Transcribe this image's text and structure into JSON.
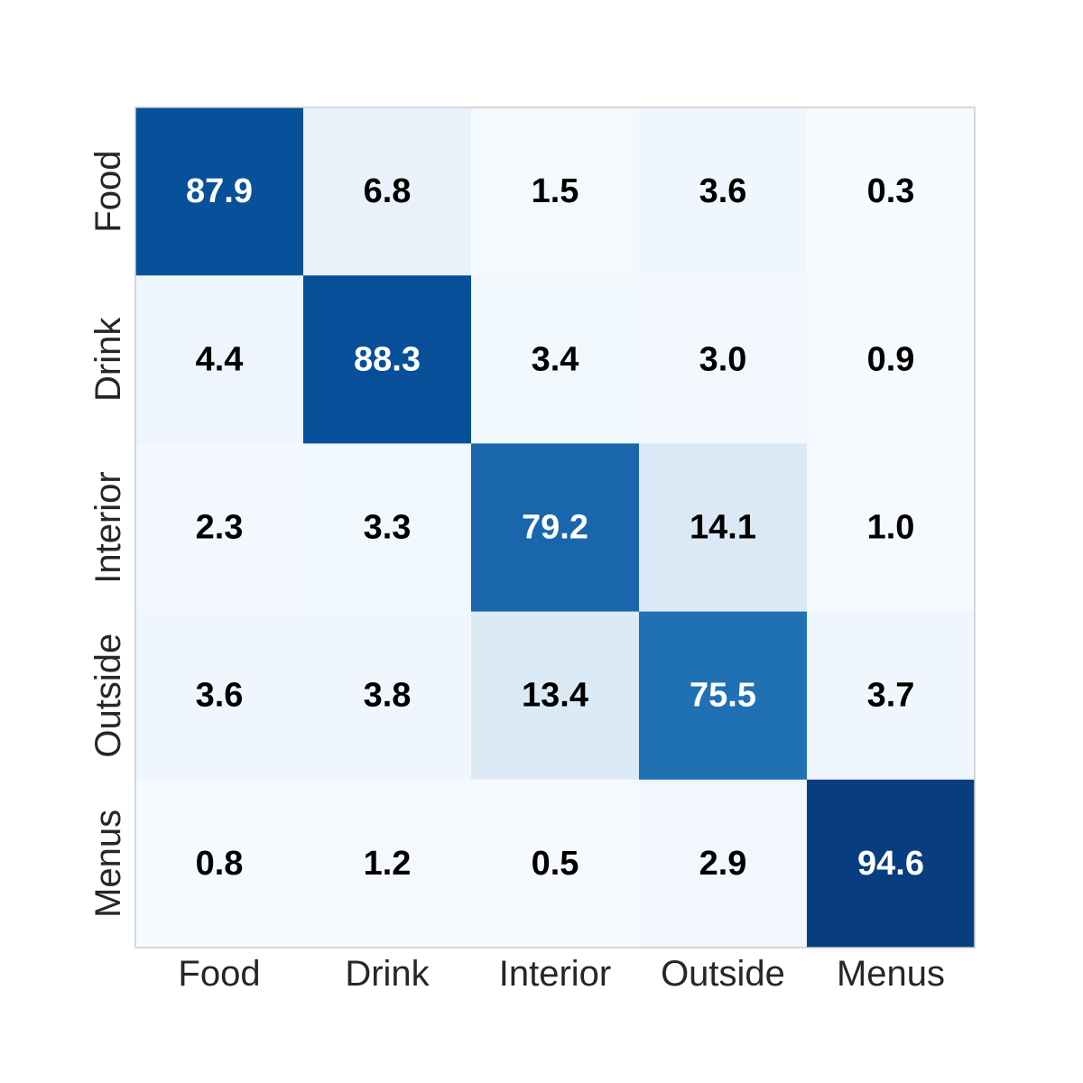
{
  "chart_data": {
    "type": "heatmap",
    "title": "",
    "xlabel": "",
    "ylabel": "",
    "x_categories": [
      "Food",
      "Drink",
      "Interior",
      "Outside",
      "Menus"
    ],
    "y_categories": [
      "Food",
      "Drink",
      "Interior",
      "Outside",
      "Menus"
    ],
    "values": [
      [
        87.9,
        6.8,
        1.5,
        3.6,
        0.3
      ],
      [
        4.4,
        88.3,
        3.4,
        3.0,
        0.9
      ],
      [
        2.3,
        3.3,
        79.2,
        14.1,
        1.0
      ],
      [
        3.6,
        3.8,
        13.4,
        75.5,
        3.7
      ],
      [
        0.8,
        1.2,
        0.5,
        2.9,
        94.6
      ]
    ],
    "colormap": "Blues",
    "value_range": [
      0,
      100
    ],
    "grid": false,
    "legend": "none",
    "colors": {
      "low": "#f7fbff",
      "high": "#08306b",
      "text_dark": "#000000",
      "text_light": "#ffffff",
      "frame": "#cccccc"
    }
  }
}
